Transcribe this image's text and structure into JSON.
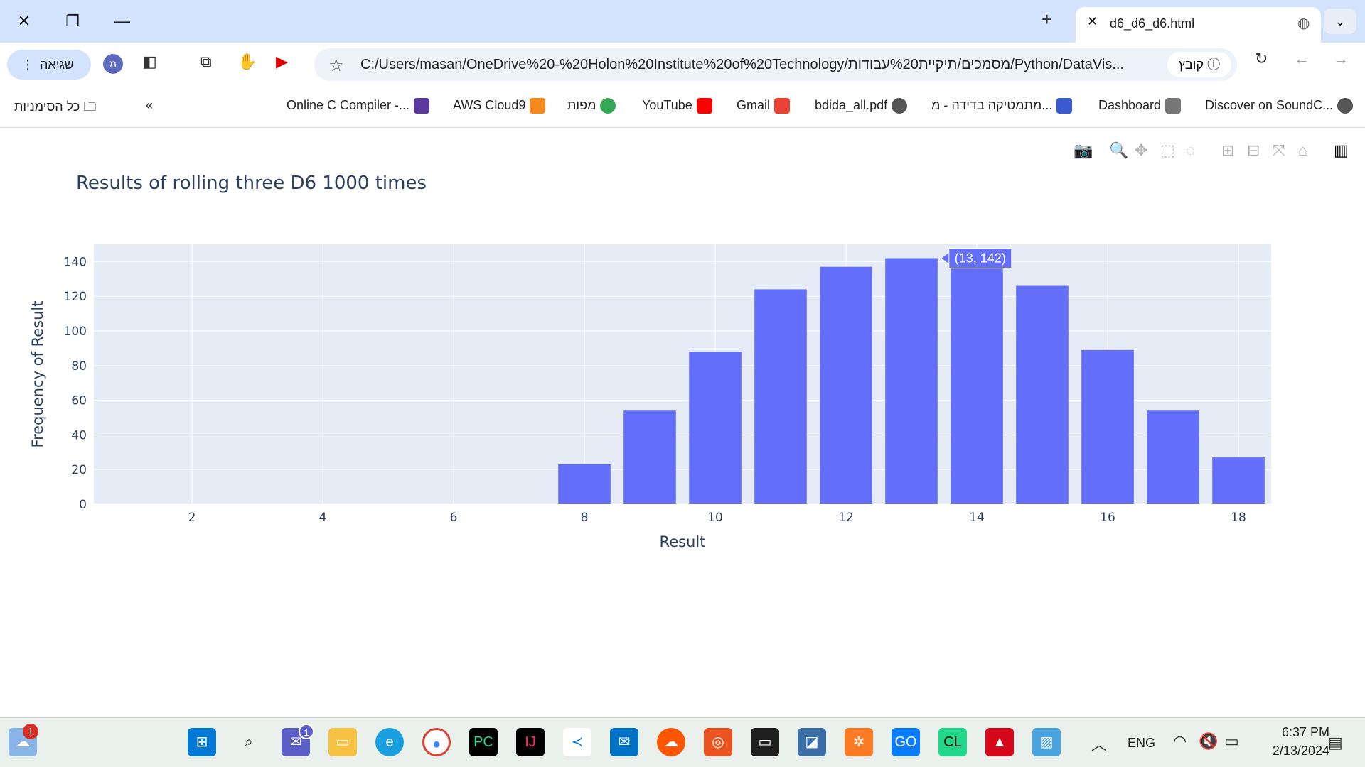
{
  "tab": {
    "title": "d6_d6_d6.html"
  },
  "toolbar": {
    "error_label": "שגיאה",
    "profile_letter": "מ",
    "url": "C:/Users/masan/OneDrive%20-%20Holon%20Institute%20of%20Technology/מסמכים/תיקיית%20עבודות/Python/DataVis...",
    "file_chip": "קובץ"
  },
  "bookmarks": {
    "all": "כל הסימניות",
    "items": [
      {
        "label": "Online C Compiler -...",
        "color": "#5b3a9e"
      },
      {
        "label": "AWS Cloud9",
        "color": "#f58a1f"
      },
      {
        "label": "מפות",
        "color": "#34a853"
      },
      {
        "label": "YouTube",
        "color": "#ff0000"
      },
      {
        "label": "Gmail",
        "color": "#ea4335"
      },
      {
        "label": "bdida_all.pdf",
        "color": "#555555"
      },
      {
        "label": "מתמטיקה בדידה - מ...",
        "color": "#3a5bd0"
      },
      {
        "label": "Dashboard",
        "color": "#777777"
      },
      {
        "label": "Discover on SoundC...",
        "color": "#555555"
      }
    ]
  },
  "chart": {
    "title": "Results of rolling three D6 1000 times",
    "tooltip": "(13, 142)"
  },
  "chart_data": {
    "type": "bar",
    "title": "Results of rolling three D6 1000 times",
    "xlabel": "Result",
    "ylabel": "Frequency of Result",
    "x": [
      1,
      2,
      3,
      4,
      5,
      6,
      7,
      8,
      9,
      10,
      11,
      12,
      13,
      14,
      15,
      16,
      17,
      18
    ],
    "values": [
      0,
      0,
      0,
      0,
      0,
      0,
      0,
      23,
      54,
      88,
      124,
      137,
      142,
      136,
      126,
      89,
      54,
      27
    ],
    "xticks": [
      2,
      4,
      6,
      8,
      10,
      12,
      14,
      16,
      18
    ],
    "yticks": [
      0,
      20,
      40,
      60,
      80,
      100,
      120,
      140
    ],
    "xlim": [
      0.5,
      18.5
    ],
    "ylim": [
      0,
      150
    ],
    "bar_color": "#636efa",
    "plot_bg": "#e5ecf6",
    "grid": true
  },
  "taskbar": {
    "lang": "ENG",
    "time": "6:37 PM",
    "date": "2/13/2024",
    "weather_badge": "1",
    "chat_badge": "1"
  }
}
